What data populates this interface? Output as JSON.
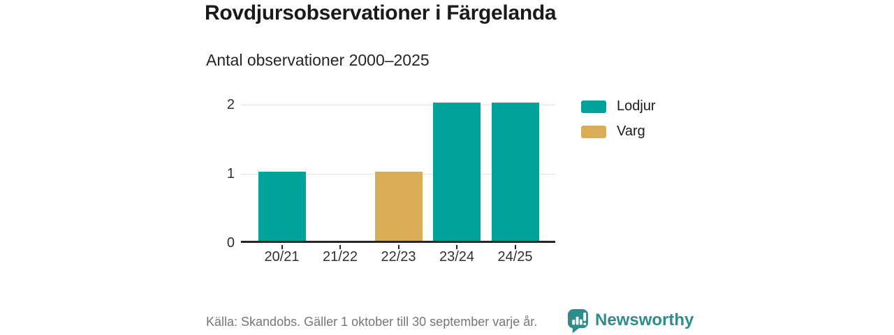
{
  "title": "Rovdjursobservationer i Färgelanda",
  "subtitle": "Antal observationer 2000–2025",
  "chart_data": {
    "type": "bar",
    "categories": [
      "20/21",
      "21/22",
      "22/23",
      "23/24",
      "24/25"
    ],
    "series": [
      {
        "name": "Lodjur",
        "color": "#00a39a",
        "values": [
          1,
          0,
          0,
          2,
          2
        ]
      },
      {
        "name": "Varg",
        "color": "#d9ac57",
        "values": [
          0,
          0,
          1,
          0,
          0
        ]
      }
    ],
    "title": "Rovdjursobservationer i Färgelanda",
    "subtitle": "Antal observationer 2000–2025",
    "xlabel": "",
    "ylabel": "",
    "ylim": [
      0,
      2
    ],
    "yticks": [
      0,
      1,
      2
    ],
    "grid": "horizontal",
    "legend_position": "right"
  },
  "footer": {
    "source": "Källa: Skandobs. Gäller 1 oktober till 30 september varje år.",
    "brand": "Newsworthy",
    "logo_icon": "newsworthy-speech-bubble-bar-chart-icon"
  },
  "colors": {
    "accent_teal": "#00a39a",
    "accent_gold": "#d9ac57",
    "brand_teal": "#2e8c8c",
    "axis": "#262626",
    "gridline": "#dedede",
    "text_dark": "#1a1a1a",
    "text_muted": "#767676"
  }
}
